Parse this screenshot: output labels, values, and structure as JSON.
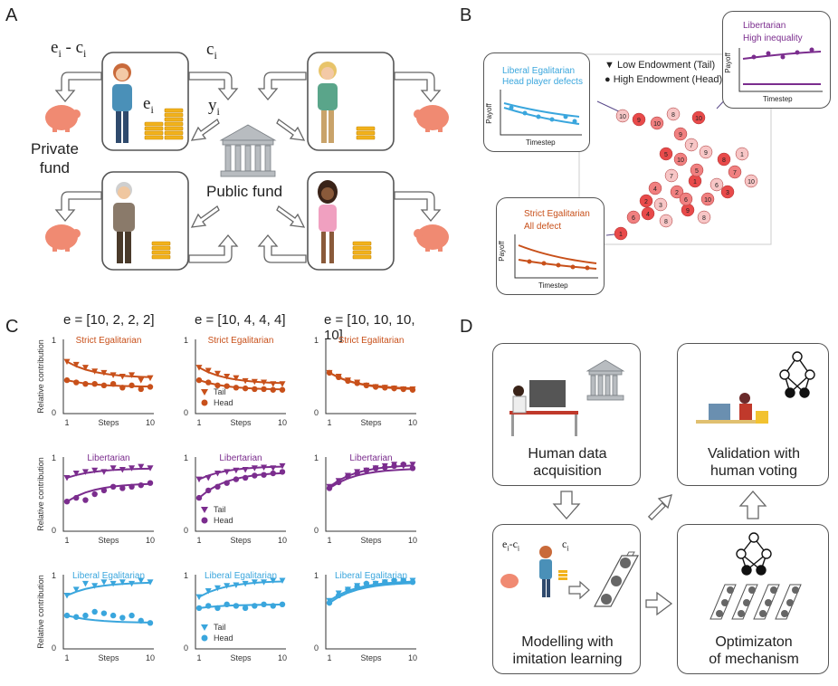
{
  "panels": {
    "a": "A",
    "b": "B",
    "c": "C",
    "d": "D"
  },
  "panel_a": {
    "e_minus_c": "e",
    "e_minus_c_sub1": "i",
    "e_minus_c_mid": " - c",
    "e_minus_c_sub2": "i",
    "c_label": "c",
    "c_sub": "i",
    "y_label": "y",
    "y_sub": "i",
    "e_label": "e",
    "e_sub": "i",
    "private_fund": [
      "Private",
      "fund"
    ],
    "public_fund": "Public fund"
  },
  "panel_b": {
    "legend": [
      "Low Endowment (Tail)",
      "High Endowment (Head)"
    ],
    "inset1": {
      "title1": "Liberal Egalitarian",
      "title2": "Head player defects",
      "ylabel": "Payoff",
      "xlabel": "Timestep",
      "color": "#3aa6dd"
    },
    "inset2": {
      "title1": "Libertarian",
      "title2": "High inequality",
      "ylabel": "Payoff",
      "xlabel": "Timestep",
      "color": "#7b2d8e"
    },
    "inset3": {
      "title1": "Strict Egalitarian",
      "title2": "All defect",
      "ylabel": "Payoff",
      "xlabel": "Timestep",
      "color": "#c8501a"
    },
    "scatter_labels": [
      "10",
      "9",
      "10",
      "8",
      "10",
      "9",
      "7",
      "5",
      "10",
      "9",
      "8",
      "7",
      "6",
      "1",
      "2",
      "3",
      "4",
      "6",
      "8",
      "9",
      "10",
      "1",
      "3",
      "5",
      "7",
      "2",
      "4",
      "10",
      "1",
      "6",
      "8"
    ]
  },
  "panel_c": {
    "col_titles": [
      "e = [10, 2, 2, 2]",
      "e = [10, 4, 4, 4]",
      "e = [10, 10, 10, 10]"
    ],
    "col_title_bold": "e",
    "row_titles": [
      "Strict Egalitarian",
      "Libertarian",
      "Liberal Egalitarian"
    ],
    "ylabel": "Relative contribution",
    "xlabel": "Steps",
    "ytick_top": "1",
    "ytick_bottom": "0",
    "xtick_left": "1",
    "xtick_right": "10",
    "legend_tail": "Tail",
    "legend_head": "Head"
  },
  "panel_d": {
    "box1": [
      "Human data",
      "acquisition"
    ],
    "box2": [
      "Validation with",
      "human voting"
    ],
    "box3": [
      "Modelling with",
      "imitation learning"
    ],
    "box4": [
      "Optimizaton",
      "of mechanism"
    ],
    "mini_e": "e",
    "mini_c": "c",
    "mini_sub": "i"
  },
  "colors": {
    "strict": "#c8501a",
    "libertarian": "#7b2d8e",
    "liberal": "#3aa6dd",
    "gold": "#f2b21b",
    "piggy": "#f08a72"
  },
  "chart_data": [
    {
      "type": "line",
      "title": "Strict Egalitarian",
      "panel": "e = [10, 2, 2, 2]",
      "xlabel": "Steps",
      "ylabel": "Relative contribution",
      "ylim": [
        0,
        1
      ],
      "series": [
        {
          "name": "Tail",
          "values": [
            0.7,
            0.66,
            0.62,
            0.57,
            0.55,
            0.52,
            0.5,
            0.52,
            0.45,
            0.48
          ]
        },
        {
          "name": "Head",
          "values": [
            0.45,
            0.42,
            0.4,
            0.4,
            0.38,
            0.4,
            0.35,
            0.38,
            0.33,
            0.36
          ]
        }
      ]
    },
    {
      "type": "line",
      "title": "Strict Egalitarian",
      "panel": "e = [10, 4, 4, 4]",
      "xlabel": "Steps",
      "ylabel": "Relative contribution",
      "ylim": [
        0,
        1
      ],
      "series": [
        {
          "name": "Tail",
          "values": [
            0.62,
            0.58,
            0.54,
            0.5,
            0.48,
            0.44,
            0.43,
            0.42,
            0.4,
            0.4
          ]
        },
        {
          "name": "Head",
          "values": [
            0.45,
            0.42,
            0.38,
            0.37,
            0.35,
            0.34,
            0.33,
            0.33,
            0.32,
            0.32
          ]
        }
      ]
    },
    {
      "type": "line",
      "title": "Strict Egalitarian",
      "panel": "e = [10, 10, 10, 10]",
      "xlabel": "Steps",
      "ylabel": "Relative contribution",
      "ylim": [
        0,
        1
      ],
      "series": [
        {
          "name": "Tail",
          "values": [
            0.55,
            0.5,
            0.45,
            0.42,
            0.38,
            0.36,
            0.35,
            0.34,
            0.33,
            0.33
          ]
        },
        {
          "name": "Head",
          "values": [
            0.55,
            0.49,
            0.44,
            0.41,
            0.38,
            0.36,
            0.35,
            0.34,
            0.33,
            0.32
          ]
        }
      ]
    },
    {
      "type": "line",
      "title": "Libertarian",
      "panel": "e = [10, 2, 2, 2]",
      "xlabel": "Steps",
      "ylabel": "Relative contribution",
      "ylim": [
        0,
        1
      ],
      "series": [
        {
          "name": "Tail",
          "values": [
            0.72,
            0.78,
            0.8,
            0.82,
            0.8,
            0.85,
            0.83,
            0.85,
            0.87,
            0.85
          ]
        },
        {
          "name": "Head",
          "values": [
            0.4,
            0.45,
            0.42,
            0.5,
            0.55,
            0.6,
            0.58,
            0.6,
            0.62,
            0.65
          ]
        }
      ]
    },
    {
      "type": "line",
      "title": "Libertarian",
      "panel": "e = [10, 4, 4, 4]",
      "xlabel": "Steps",
      "ylabel": "Relative contribution",
      "ylim": [
        0,
        1
      ],
      "series": [
        {
          "name": "Tail",
          "values": [
            0.7,
            0.72,
            0.78,
            0.8,
            0.82,
            0.83,
            0.85,
            0.86,
            0.85,
            0.88
          ]
        },
        {
          "name": "Head",
          "values": [
            0.45,
            0.55,
            0.6,
            0.65,
            0.7,
            0.72,
            0.75,
            0.76,
            0.78,
            0.8
          ]
        }
      ]
    },
    {
      "type": "line",
      "title": "Libertarian",
      "panel": "e = [10, 10, 10, 10]",
      "xlabel": "Steps",
      "ylabel": "Relative contribution",
      "ylim": [
        0,
        1
      ],
      "series": [
        {
          "name": "Tail",
          "values": [
            0.6,
            0.68,
            0.75,
            0.8,
            0.82,
            0.85,
            0.88,
            0.9,
            0.88,
            0.9
          ]
        },
        {
          "name": "Head",
          "values": [
            0.58,
            0.66,
            0.74,
            0.78,
            0.82,
            0.85,
            0.86,
            0.88,
            0.9,
            0.85
          ]
        }
      ]
    },
    {
      "type": "line",
      "title": "Liberal Egalitarian",
      "panel": "e = [10, 2, 2, 2]",
      "xlabel": "Steps",
      "ylabel": "Relative contribution",
      "ylim": [
        0,
        1
      ],
      "series": [
        {
          "name": "Tail",
          "values": [
            0.72,
            0.8,
            0.88,
            0.85,
            0.9,
            0.88,
            0.9,
            0.88,
            0.92,
            0.9
          ]
        },
        {
          "name": "Head",
          "values": [
            0.45,
            0.43,
            0.45,
            0.5,
            0.48,
            0.45,
            0.42,
            0.45,
            0.38,
            0.35
          ]
        }
      ]
    },
    {
      "type": "line",
      "title": "Liberal Egalitarian",
      "panel": "e = [10, 4, 4, 4]",
      "xlabel": "Steps",
      "ylabel": "Relative contribution",
      "ylim": [
        0,
        1
      ],
      "series": [
        {
          "name": "Tail",
          "values": [
            0.7,
            0.78,
            0.82,
            0.85,
            0.86,
            0.88,
            0.9,
            0.9,
            0.92,
            0.92
          ]
        },
        {
          "name": "Head",
          "values": [
            0.55,
            0.58,
            0.55,
            0.6,
            0.58,
            0.55,
            0.58,
            0.6,
            0.58,
            0.6
          ]
        }
      ]
    },
    {
      "type": "line",
      "title": "Liberal Egalitarian",
      "panel": "e = [10, 10, 10, 10]",
      "xlabel": "Steps",
      "ylabel": "Relative contribution",
      "ylim": [
        0,
        1
      ],
      "series": [
        {
          "name": "Tail",
          "values": [
            0.65,
            0.75,
            0.8,
            0.85,
            0.86,
            0.88,
            0.9,
            0.9,
            0.92,
            0.92
          ]
        },
        {
          "name": "Head",
          "values": [
            0.62,
            0.72,
            0.8,
            0.84,
            0.88,
            0.88,
            0.9,
            0.92,
            0.92,
            0.9
          ]
        }
      ]
    }
  ]
}
